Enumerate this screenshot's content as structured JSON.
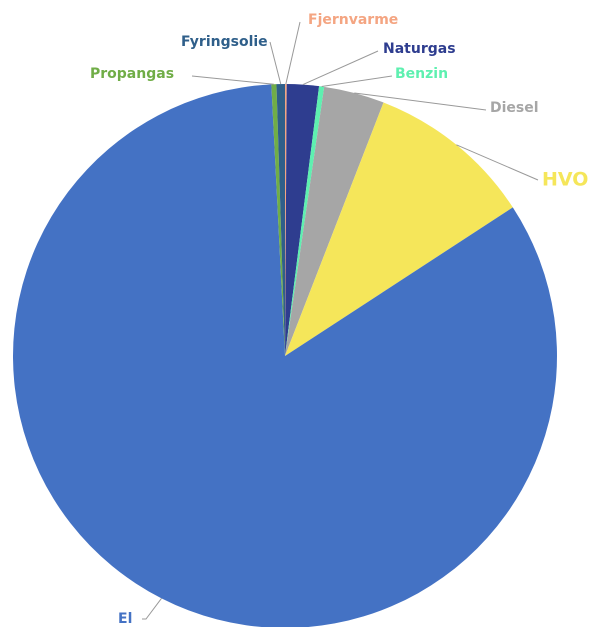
{
  "chart_data": {
    "type": "pie",
    "categories": [
      "Fjernvarme",
      "Naturgas",
      "Benzin",
      "Diesel",
      "HVO",
      "El",
      "Propangas",
      "Fyringsolie"
    ],
    "values": [
      0.1,
      1.9,
      0.3,
      3.6,
      9.9,
      83.4,
      0.3,
      0.5
    ],
    "colors": [
      "#f4a582",
      "#2e3d8f",
      "#5ef0b0",
      "#a6a6a6",
      "#f5e65a",
      "#4472c4",
      "#70ad47",
      "#2f5f8a"
    ]
  }
}
